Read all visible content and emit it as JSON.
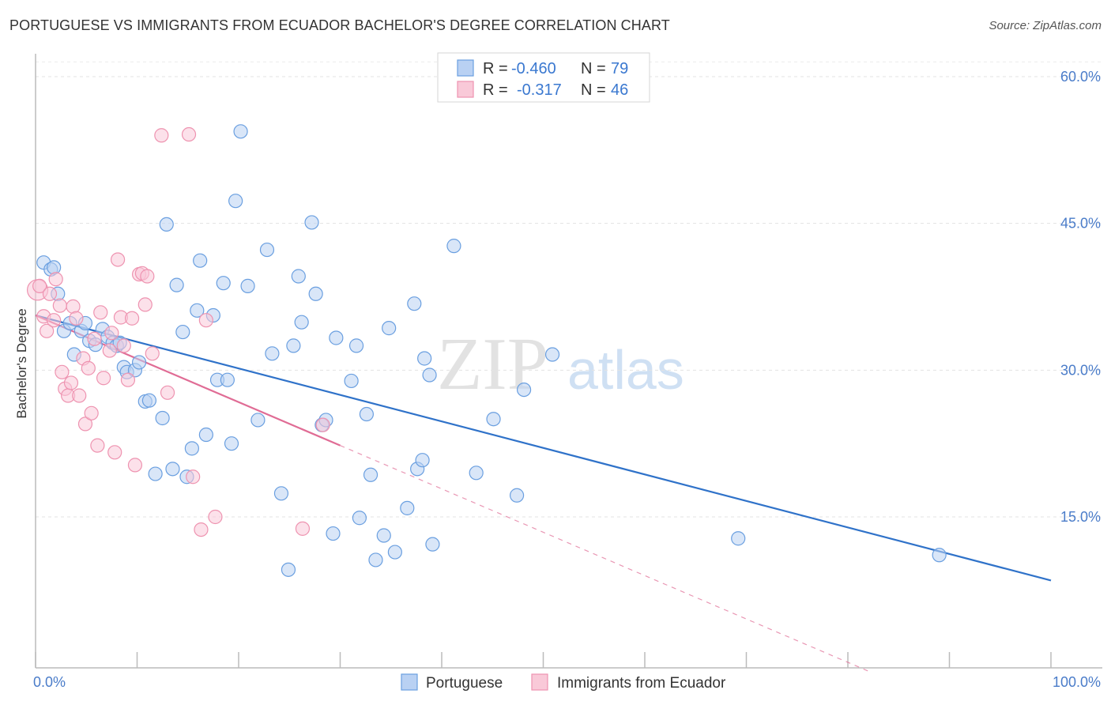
{
  "chart_data": {
    "type": "scatter",
    "title": "PORTUGUESE VS IMMIGRANTS FROM ECUADOR BACHELOR'S DEGREE CORRELATION CHART",
    "source": "Source: ZipAtlas.com",
    "watermark": {
      "zip": "ZIP",
      "atlas": "atlas"
    },
    "ylabel": "Bachelor's Degree",
    "xlim": [
      0,
      100
    ],
    "ylim": [
      0,
      63
    ],
    "x_tick_labels": [
      {
        "value": 0,
        "label": "0.0%"
      },
      {
        "value": 100,
        "label": "100.0%"
      }
    ],
    "y_tick_labels": [
      {
        "value": 15,
        "label": "15.0%"
      },
      {
        "value": 30,
        "label": "30.0%"
      },
      {
        "value": 45,
        "label": "45.0%"
      },
      {
        "value": 60,
        "label": "60.0%"
      }
    ],
    "legend": [
      {
        "r_label": "R =",
        "r_value": "-0.460",
        "n_label": "N =",
        "n_value": "79"
      },
      {
        "r_label": "R =",
        "r_value": "-0.317",
        "n_label": "N =",
        "n_value": "46"
      }
    ],
    "series": [
      {
        "name": "Portuguese",
        "color": "#6a9fe0",
        "fill": "#b9d1f3",
        "line_color": "#2f72c9",
        "trend": {
          "x0": 0,
          "y0": 35.6,
          "x1": 100,
          "y1": 8.5,
          "dashed_from": null
        },
        "points": [
          [
            0.8,
            41
          ],
          [
            1.5,
            40.3
          ],
          [
            1.8,
            40.5
          ],
          [
            2.2,
            37.8
          ],
          [
            2.8,
            34
          ],
          [
            3.4,
            34.8
          ],
          [
            3.8,
            31.6
          ],
          [
            4.5,
            34
          ],
          [
            4.9,
            34.8
          ],
          [
            5.3,
            33
          ],
          [
            5.9,
            32.6
          ],
          [
            6.6,
            34.2
          ],
          [
            7.1,
            33.4
          ],
          [
            7.6,
            32.8
          ],
          [
            8,
            32.5
          ],
          [
            8.3,
            32.8
          ],
          [
            8.7,
            30.3
          ],
          [
            9,
            29.8
          ],
          [
            9.8,
            30
          ],
          [
            10.2,
            30.8
          ],
          [
            10.8,
            26.8
          ],
          [
            11.2,
            26.9
          ],
          [
            11.8,
            19.4
          ],
          [
            12.5,
            25.1
          ],
          [
            12.9,
            44.9
          ],
          [
            13.5,
            19.9
          ],
          [
            13.9,
            38.7
          ],
          [
            14.5,
            33.9
          ],
          [
            14.9,
            19.1
          ],
          [
            15.4,
            22
          ],
          [
            15.9,
            36.1
          ],
          [
            16.2,
            41.2
          ],
          [
            16.8,
            23.4
          ],
          [
            17.5,
            35.6
          ],
          [
            17.9,
            29
          ],
          [
            18.5,
            38.9
          ],
          [
            18.9,
            29
          ],
          [
            19.3,
            22.5
          ],
          [
            19.7,
            47.3
          ],
          [
            20.2,
            54.4
          ],
          [
            20.9,
            38.6
          ],
          [
            21.9,
            24.9
          ],
          [
            22.8,
            42.3
          ],
          [
            23.3,
            31.7
          ],
          [
            24.2,
            17.4
          ],
          [
            24.9,
            9.6
          ],
          [
            25.4,
            32.5
          ],
          [
            25.9,
            39.6
          ],
          [
            26.2,
            34.9
          ],
          [
            27.2,
            45.1
          ],
          [
            27.6,
            37.8
          ],
          [
            28.2,
            24.4
          ],
          [
            28.6,
            24.9
          ],
          [
            29.6,
            33.3
          ],
          [
            29.3,
            13.3
          ],
          [
            31.1,
            28.9
          ],
          [
            31.6,
            32.5
          ],
          [
            31.9,
            14.9
          ],
          [
            32.6,
            25.5
          ],
          [
            33,
            19.3
          ],
          [
            33.5,
            10.6
          ],
          [
            34.3,
            13.1
          ],
          [
            34.8,
            34.3
          ],
          [
            35.4,
            11.4
          ],
          [
            36.6,
            15.9
          ],
          [
            37.3,
            36.8
          ],
          [
            37.6,
            19.9
          ],
          [
            38.1,
            20.8
          ],
          [
            38.3,
            31.2
          ],
          [
            38.8,
            29.5
          ],
          [
            39.1,
            12.2
          ],
          [
            41.2,
            42.7
          ],
          [
            43.4,
            19.5
          ],
          [
            45.1,
            25
          ],
          [
            47.4,
            17.2
          ],
          [
            48.1,
            28
          ],
          [
            50.9,
            31.6
          ],
          [
            69.2,
            12.8
          ],
          [
            89,
            11.1
          ]
        ]
      },
      {
        "name": "Immigrants from Ecuador",
        "color": "#ee93b0",
        "fill": "#f9c9d8",
        "line_color": "#e06c95",
        "trend": {
          "x0": 0,
          "y0": 35.6,
          "x1": 30,
          "y1": 22.3,
          "dashed_to_x": 82
        },
        "points": [
          [
            0.2,
            38.2
          ],
          [
            0.4,
            38.6
          ],
          [
            0.8,
            35.5
          ],
          [
            1.1,
            34
          ],
          [
            1.4,
            37.8
          ],
          [
            1.8,
            35.1
          ],
          [
            2,
            39.3
          ],
          [
            2.4,
            36.6
          ],
          [
            2.6,
            29.8
          ],
          [
            2.9,
            28.1
          ],
          [
            3.2,
            27.4
          ],
          [
            3.5,
            28.7
          ],
          [
            3.7,
            36.5
          ],
          [
            4,
            35.3
          ],
          [
            4.3,
            27.4
          ],
          [
            4.7,
            31.2
          ],
          [
            4.9,
            24.5
          ],
          [
            5.2,
            30.2
          ],
          [
            5.5,
            25.6
          ],
          [
            5.8,
            33.2
          ],
          [
            6.1,
            22.3
          ],
          [
            6.4,
            35.9
          ],
          [
            6.7,
            29.2
          ],
          [
            7.3,
            32
          ],
          [
            7.5,
            33.8
          ],
          [
            7.8,
            21.6
          ],
          [
            8.1,
            41.3
          ],
          [
            8.4,
            35.4
          ],
          [
            8.7,
            32.5
          ],
          [
            9.1,
            29
          ],
          [
            9.5,
            35.3
          ],
          [
            9.8,
            20.3
          ],
          [
            10.2,
            39.8
          ],
          [
            10.5,
            39.9
          ],
          [
            10.8,
            36.7
          ],
          [
            11,
            39.6
          ],
          [
            11.5,
            31.7
          ],
          [
            12.4,
            54
          ],
          [
            13,
            27.7
          ],
          [
            15.1,
            54.1
          ],
          [
            15.5,
            19.1
          ],
          [
            16.3,
            13.7
          ],
          [
            16.8,
            35.1
          ],
          [
            17.7,
            15
          ],
          [
            26.3,
            13.8
          ],
          [
            28.3,
            24.4
          ]
        ]
      }
    ]
  }
}
